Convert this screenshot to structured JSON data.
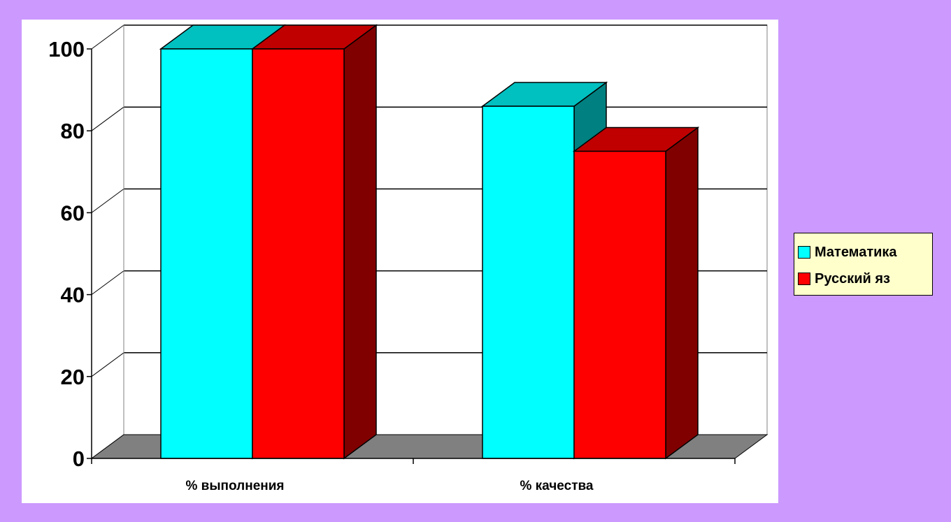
{
  "chart_data": {
    "type": "bar",
    "style": "3d-clustered-column",
    "categories": [
      "% выполнения",
      "% качества"
    ],
    "series": [
      {
        "name": "Математика",
        "values": [
          100,
          86
        ],
        "color": "#00ffff",
        "top_color": "#00c0c0",
        "side_color": "#008080"
      },
      {
        "name": "Русский яз",
        "values": [
          100,
          75
        ],
        "color": "#ff0000",
        "top_color": "#c00000",
        "side_color": "#800000"
      }
    ],
    "ylim": [
      0,
      100
    ],
    "yticks": [
      "0",
      "20",
      "40",
      "60",
      "80",
      "100"
    ],
    "grid": true,
    "legend_position": "right",
    "floor_color": "#808080"
  }
}
